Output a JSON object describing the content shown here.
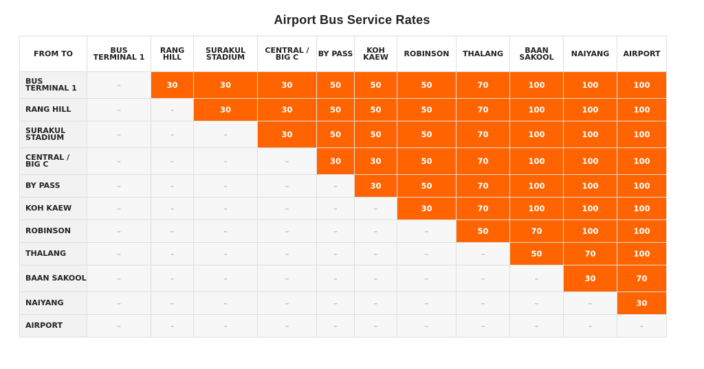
{
  "title": "Airport Bus Service Rates",
  "corner_label": "FROM TO",
  "empty_marker": "–",
  "colors": {
    "price_bg": "#ff6400",
    "price_text": "#ffffff",
    "empty_bg": "#f7f7f7",
    "header_bg": "#f2f2f2"
  },
  "columns": [
    "BUS TERMINAL 1",
    "RANG HILL",
    "SURAKUL STADIUM",
    "CENTRAL / BIG C",
    "BY PASS",
    "KOH KAEW",
    "ROBINSON",
    "THALANG",
    "BAAN SAKOOL",
    "NAIYANG",
    "AIRPORT"
  ],
  "rows": [
    {
      "from": "BUS TERMINAL 1",
      "prices": [
        null,
        "30",
        "30",
        "30",
        "50",
        "50",
        "50",
        "70",
        "100",
        "100",
        "100"
      ]
    },
    {
      "from": "RANG HILL",
      "prices": [
        null,
        null,
        "30",
        "30",
        "50",
        "50",
        "50",
        "70",
        "100",
        "100",
        "100"
      ]
    },
    {
      "from": "SURAKUL STADIUM",
      "prices": [
        null,
        null,
        null,
        "30",
        "50",
        "50",
        "50",
        "70",
        "100",
        "100",
        "100"
      ]
    },
    {
      "from": "CENTRAL / BIG C",
      "prices": [
        null,
        null,
        null,
        null,
        "30",
        "30",
        "50",
        "70",
        "100",
        "100",
        "100"
      ]
    },
    {
      "from": "BY PASS",
      "prices": [
        null,
        null,
        null,
        null,
        null,
        "30",
        "50",
        "70",
        "100",
        "100",
        "100"
      ]
    },
    {
      "from": "KOH KAEW",
      "prices": [
        null,
        null,
        null,
        null,
        null,
        null,
        "30",
        "70",
        "100",
        "100",
        "100"
      ]
    },
    {
      "from": "ROBINSON",
      "prices": [
        null,
        null,
        null,
        null,
        null,
        null,
        null,
        "50",
        "70",
        "100",
        "100"
      ]
    },
    {
      "from": "THALANG",
      "prices": [
        null,
        null,
        null,
        null,
        null,
        null,
        null,
        null,
        "50",
        "70",
        "100"
      ]
    },
    {
      "from": "BAAN SAKOOL",
      "prices": [
        null,
        null,
        null,
        null,
        null,
        null,
        null,
        null,
        null,
        "30",
        "70"
      ]
    },
    {
      "from": "NAIYANG",
      "prices": [
        null,
        null,
        null,
        null,
        null,
        null,
        null,
        null,
        null,
        null,
        "30"
      ]
    },
    {
      "from": "AIRPORT",
      "prices": [
        null,
        null,
        null,
        null,
        null,
        null,
        null,
        null,
        null,
        null,
        null
      ]
    }
  ]
}
